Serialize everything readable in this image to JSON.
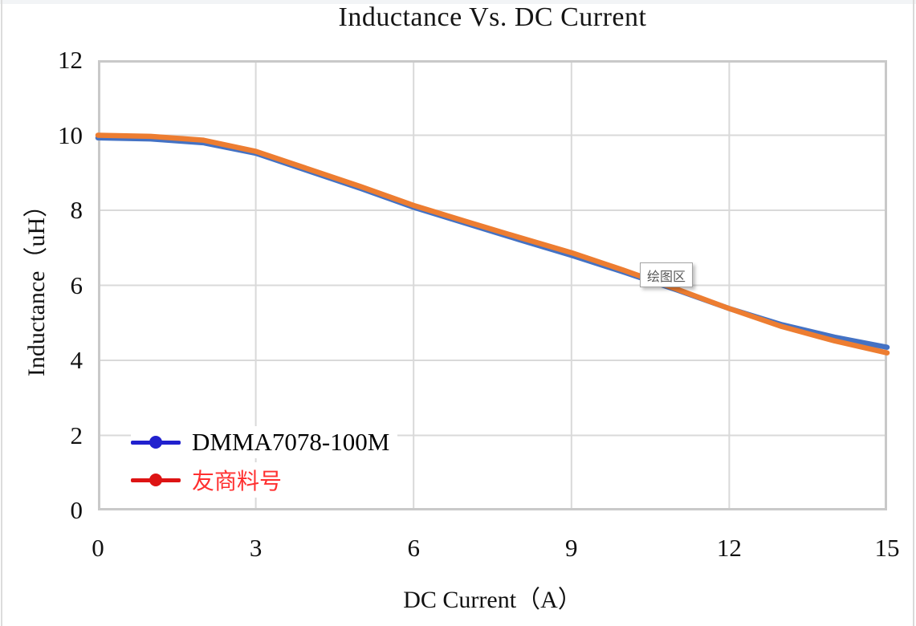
{
  "title": "Inductance Vs. DC Current",
  "tooltip": {
    "label": "绘图区"
  },
  "axes": {
    "x_title": "DC Current（A）",
    "y_title": "Inductance（uH）"
  },
  "legend": [
    {
      "label": "DMMA7078-100M",
      "swatch_color": "#2121ce",
      "text_color": "#000000"
    },
    {
      "label": "友商料号",
      "swatch_color": "#dd1414",
      "text_color": "#ff3030"
    }
  ],
  "colors": {
    "series_blue": "#4472c4",
    "series_orange": "#ed7d31",
    "gridline": "#d9d9d9",
    "plot_border": "#c9c9c9"
  },
  "chart_data": {
    "type": "line",
    "title": "Inductance Vs. DC Current",
    "xlabel": "DC Current（A）",
    "ylabel": "Inductance（uH）",
    "xlim": [
      0,
      15
    ],
    "ylim": [
      0,
      12
    ],
    "x_ticks": [
      0,
      3,
      6,
      9,
      12,
      15
    ],
    "y_ticks": [
      0,
      2,
      4,
      6,
      8,
      10,
      12
    ],
    "grid": true,
    "legend_position": "inside-bottom-left",
    "x": [
      0,
      1,
      2,
      3,
      4,
      5,
      6,
      7,
      8,
      9,
      10,
      11,
      12,
      13,
      14,
      15
    ],
    "series": [
      {
        "name": "DMMA7078-100M",
        "color": "#4472c4",
        "values": [
          9.93,
          9.9,
          9.8,
          9.52,
          9.05,
          8.58,
          8.08,
          7.65,
          7.22,
          6.8,
          6.35,
          5.88,
          5.38,
          4.95,
          4.62,
          4.35
        ]
      },
      {
        "name": "友商料号",
        "color": "#ed7d31",
        "values": [
          10.0,
          9.97,
          9.87,
          9.57,
          9.1,
          8.63,
          8.13,
          7.7,
          7.28,
          6.87,
          6.4,
          5.9,
          5.38,
          4.9,
          4.52,
          4.2
        ]
      }
    ]
  }
}
